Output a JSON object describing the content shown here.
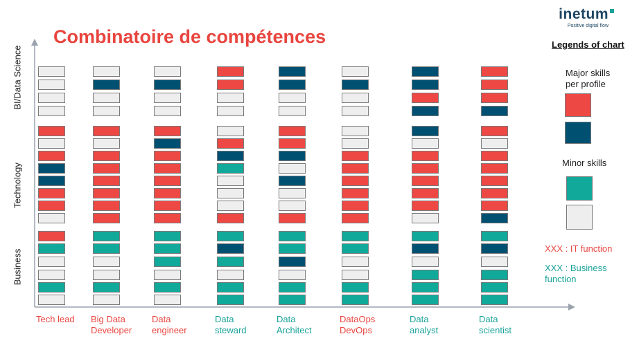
{
  "title": "Combinatoire de compétences",
  "logo": {
    "word": "inetum",
    "tagline": "Positive digital flow"
  },
  "colors": {
    "red": "#ee4844",
    "navy": "#005072",
    "teal": "#11a99a",
    "empty": "#eeeeee",
    "it_text": "#e8453f",
    "business_text": "#1aa39a"
  },
  "categories": [
    "BI/Data Science",
    "Technology",
    "Business"
  ],
  "legend": {
    "title": "Legends of chart",
    "major_label": "Major skills\nper profile",
    "major_colors": [
      "red",
      "navy"
    ],
    "minor_label": "Minor skills",
    "minor_colors": [
      "teal",
      "empty"
    ],
    "it_note": "XXX : IT function",
    "business_note": "XXX : Business\nfunction"
  },
  "profiles": [
    {
      "label": "Tech lead",
      "function": "it",
      "cells": [
        "e",
        "e",
        "e",
        "e",
        "r",
        "e",
        "r",
        "n",
        "n",
        "r",
        "r",
        "e",
        "r",
        "t",
        "e",
        "e",
        "t",
        "e"
      ]
    },
    {
      "label": "Big Data\nDeveloper",
      "function": "it",
      "cells": [
        "e",
        "n",
        "e",
        "e",
        "r",
        "e",
        "r",
        "r",
        "r",
        "r",
        "r",
        "r",
        "t",
        "t",
        "e",
        "e",
        "t",
        "e"
      ]
    },
    {
      "label": "Data\nengineer",
      "function": "it",
      "cells": [
        "e",
        "n",
        "e",
        "e",
        "r",
        "n",
        "r",
        "r",
        "r",
        "r",
        "r",
        "r",
        "t",
        "t",
        "t",
        "e",
        "t",
        "e"
      ]
    },
    {
      "label": "Data\nsteward",
      "function": "business",
      "cells": [
        "r",
        "r",
        "e",
        "e",
        "e",
        "r",
        "n",
        "t",
        "e",
        "e",
        "e",
        "r",
        "t",
        "n",
        "t",
        "e",
        "t",
        "t"
      ]
    },
    {
      "label": "Data\nArchitect",
      "function": "business",
      "cells": [
        "n",
        "n",
        "e",
        "e",
        "r",
        "r",
        "n",
        "e",
        "n",
        "e",
        "e",
        "r",
        "t",
        "t",
        "n",
        "e",
        "t",
        "t"
      ]
    },
    {
      "label": "DataOps\nDevOps",
      "function": "it",
      "cells": [
        "e",
        "n",
        "e",
        "e",
        "e",
        "e",
        "r",
        "r",
        "r",
        "r",
        "r",
        "r",
        "t",
        "t",
        "e",
        "e",
        "t",
        "t"
      ]
    },
    {
      "label": "Data\nanalyst",
      "function": "business",
      "cells": [
        "n",
        "n",
        "r",
        "n",
        "n",
        "e",
        "r",
        "r",
        "r",
        "r",
        "r",
        "e",
        "t",
        "n",
        "e",
        "t",
        "t",
        "t"
      ]
    },
    {
      "label": "Data\nscientist",
      "function": "business",
      "cells": [
        "r",
        "r",
        "r",
        "n",
        "r",
        "e",
        "r",
        "r",
        "r",
        "r",
        "r",
        "n",
        "t",
        "n",
        "e",
        "t",
        "t",
        "t"
      ]
    }
  ]
}
